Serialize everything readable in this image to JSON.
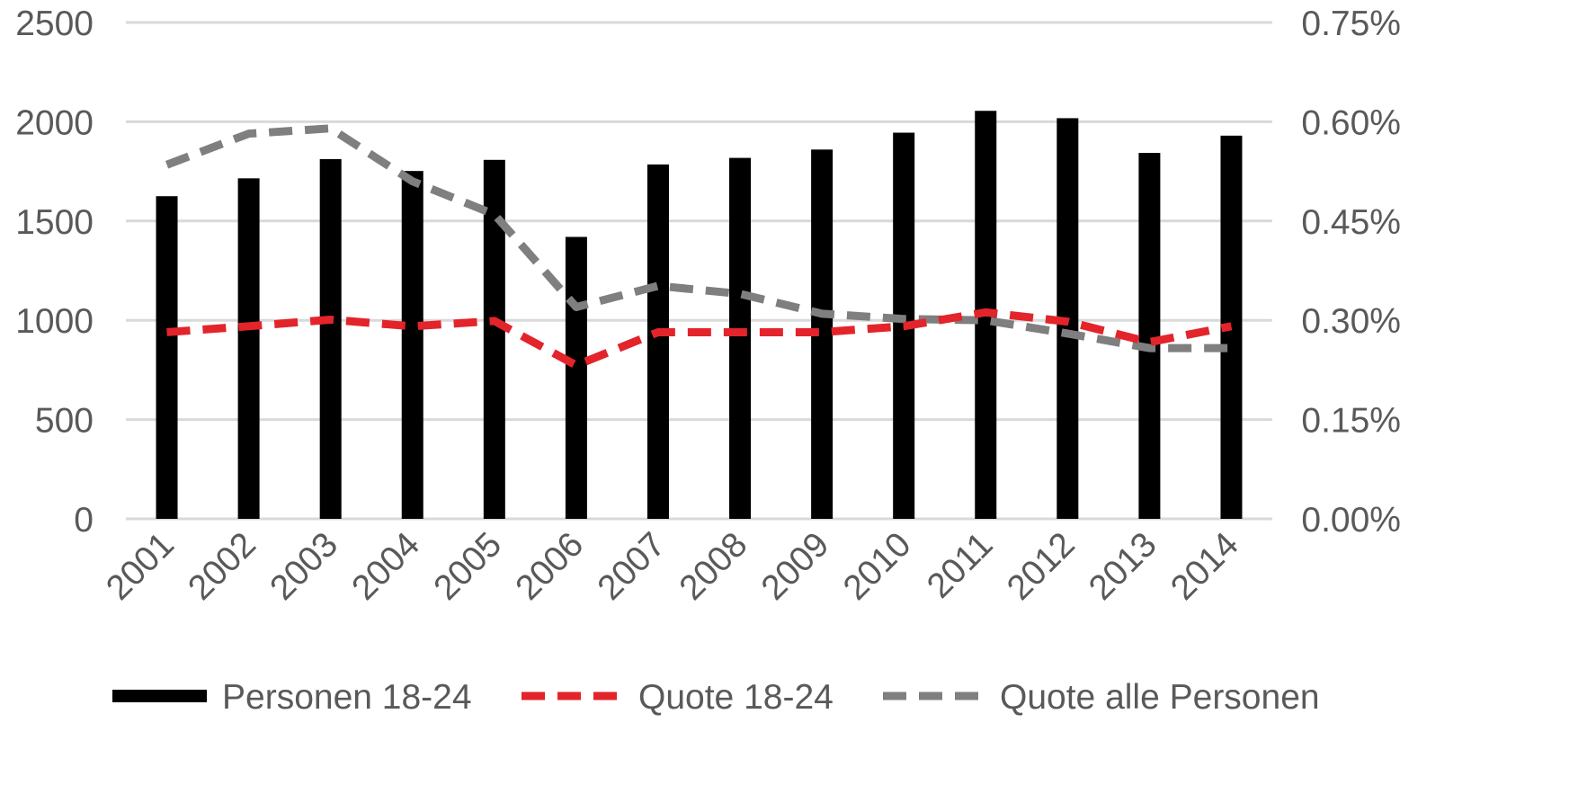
{
  "chart_data": {
    "type": "bar",
    "categories": [
      "2001",
      "2002",
      "2003",
      "2004",
      "2005",
      "2006",
      "2007",
      "2008",
      "2009",
      "2010",
      "2011",
      "2012",
      "2013",
      "2014"
    ],
    "series": [
      {
        "name": "Personen 18-24",
        "type": "bar",
        "axis": "left",
        "color": "#000000",
        "values": [
          1625,
          1715,
          1812,
          1752,
          1808,
          1420,
          1785,
          1818,
          1860,
          1945,
          2055,
          2018,
          1843,
          1930
        ]
      },
      {
        "name": "Quote 18-24",
        "type": "line",
        "style": "dashed",
        "axis": "right",
        "color": "#e3242b",
        "values": [
          0.282,
          0.291,
          0.301,
          0.291,
          0.299,
          0.232,
          0.282,
          0.282,
          0.282,
          0.291,
          0.312,
          0.298,
          0.267,
          0.291
        ]
      },
      {
        "name": "Quote alle Personen",
        "type": "line",
        "style": "dashed",
        "axis": "right",
        "color": "#7f7f7f",
        "values": [
          0.535,
          0.582,
          0.59,
          0.51,
          0.46,
          0.32,
          0.352,
          0.34,
          0.31,
          0.302,
          0.3,
          0.28,
          0.258,
          0.258
        ]
      }
    ],
    "y_left": {
      "ylim": [
        0,
        2500
      ],
      "ticks": [
        "0",
        "500",
        "1000",
        "1500",
        "2000",
        "2500"
      ]
    },
    "y_right": {
      "ylim": [
        0,
        0.75
      ],
      "ticks": [
        "0.00%",
        "0.15%",
        "0.30%",
        "0.45%",
        "0.60%",
        "0.75%"
      ]
    },
    "grid": true,
    "legend_position": "bottom",
    "colors": {
      "grid": "#d9d9d9",
      "text": "#595959"
    }
  }
}
